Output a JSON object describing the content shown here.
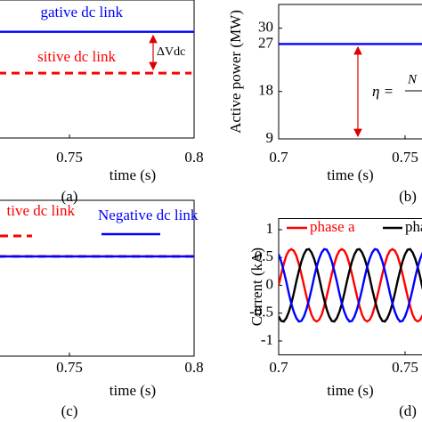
{
  "chart_data": [
    {
      "type": "line",
      "xlabel": "time (s)",
      "caption": "(a)",
      "xlim": [
        0.7,
        0.8
      ],
      "ylim": [
        0,
        1
      ],
      "xticks": [
        0.75,
        0.8
      ],
      "annotations": [
        "ΔVdc"
      ],
      "series": [
        {
          "name": "gative dc link",
          "color": "#0000ff",
          "x": [
            0.7,
            0.8
          ],
          "values": [
            0.77,
            0.77
          ]
        },
        {
          "name": "sitive dc link",
          "color": "#ff0000",
          "dashed": true,
          "x": [
            0.7,
            0.799
          ],
          "values": [
            0.47,
            0.47
          ]
        }
      ]
    },
    {
      "type": "line",
      "ylabel": "Active power (MW)",
      "xlabel": "time (s)",
      "caption": "(b)",
      "xlim": [
        0.7,
        0.8
      ],
      "ylim": [
        9,
        34.5
      ],
      "xticks": [
        0.7,
        0.75
      ],
      "yticks": [
        9,
        18,
        27,
        30
      ],
      "annotations": [
        "η =",
        "N"
      ],
      "series": [
        {
          "color": "#0000ff",
          "x": [
            0.7,
            0.8
          ],
          "values": [
            27,
            27
          ]
        }
      ]
    },
    {
      "type": "line",
      "xlabel": "time (s)",
      "caption": "(c)",
      "xlim": [
        0.7,
        0.8
      ],
      "ylim": [
        0,
        1
      ],
      "xticks": [
        0.75,
        0.8
      ],
      "series": [
        {
          "name": "tive dc link",
          "color": "#ff0000",
          "dashed": true,
          "x": [
            0.7,
            0.8
          ],
          "values": [
            0.64,
            0.64
          ]
        },
        {
          "name": "Negative dc link",
          "color": "#0000ff",
          "x": [
            0.7,
            0.8
          ],
          "values": [
            0.64,
            0.64
          ]
        }
      ]
    },
    {
      "type": "line",
      "ylabel": "Current (kA)",
      "xlabel": "time (s)",
      "caption": "(d)",
      "xlim": [
        0.7,
        0.8
      ],
      "ylim": [
        -1.25,
        1.2
      ],
      "xticks": [
        0.7,
        0.75
      ],
      "yticks": [
        -1,
        -0.5,
        0,
        0.5,
        1
      ],
      "x": [
        0.7,
        0.701,
        0.702,
        0.703,
        0.704,
        0.705,
        0.706,
        0.707,
        0.708,
        0.709,
        0.71,
        0.711,
        0.712,
        0.713,
        0.714,
        0.715,
        0.716,
        0.717,
        0.718,
        0.719,
        0.72,
        0.721,
        0.722,
        0.723,
        0.724,
        0.725,
        0.726,
        0.727,
        0.728,
        0.729,
        0.73,
        0.731,
        0.732,
        0.733,
        0.734,
        0.735,
        0.736,
        0.737,
        0.738,
        0.739,
        0.74,
        0.741,
        0.742,
        0.743,
        0.744,
        0.745,
        0.746,
        0.747,
        0.748,
        0.749,
        0.75,
        0.751,
        0.752,
        0.753,
        0.754,
        0.755,
        0.756,
        0.757
      ],
      "series": [
        {
          "name": "phase a",
          "color": "#ff0000",
          "values": [
            0,
            0.2,
            0.38,
            0.53,
            0.62,
            0.65,
            0.62,
            0.53,
            0.38,
            0.2,
            0,
            -0.2,
            -0.38,
            -0.53,
            -0.62,
            -0.65,
            -0.62,
            -0.53,
            -0.38,
            -0.2,
            0,
            0.2,
            0.38,
            0.53,
            0.62,
            0.65,
            0.62,
            0.53,
            0.38,
            0.2,
            0,
            -0.2,
            -0.38,
            -0.53,
            -0.62,
            -0.65,
            -0.62,
            -0.53,
            -0.38,
            -0.2,
            0,
            0.2,
            0.38,
            0.53,
            0.62,
            0.65,
            0.62,
            0.53,
            0.38,
            0.2,
            0,
            -0.2,
            -0.38,
            -0.53,
            -0.62,
            -0.65,
            -0.62,
            -0.53
          ]
        },
        {
          "name": "pha",
          "color": "#000000",
          "values": [
            -0.56,
            -0.64,
            -0.65,
            -0.59,
            -0.48,
            -0.33,
            -0.14,
            0.07,
            0.26,
            0.43,
            0.56,
            0.64,
            0.65,
            0.59,
            0.48,
            0.33,
            0.14,
            -0.07,
            -0.26,
            -0.43,
            -0.56,
            -0.64,
            -0.65,
            -0.59,
            -0.48,
            -0.33,
            -0.14,
            0.07,
            0.26,
            0.43,
            0.56,
            0.64,
            0.65,
            0.59,
            0.48,
            0.33,
            0.14,
            -0.07,
            -0.26,
            -0.43,
            -0.56,
            -0.64,
            -0.65,
            -0.59,
            -0.48,
            -0.33,
            -0.14,
            0.07,
            0.26,
            0.43,
            0.56,
            0.64,
            0.65,
            0.59,
            0.48,
            0.33,
            0.14,
            -0.07
          ]
        },
        {
          "color": "#0000ff",
          "values": [
            0.56,
            0.43,
            0.26,
            0.07,
            -0.14,
            -0.33,
            -0.48,
            -0.59,
            -0.65,
            -0.64,
            -0.56,
            -0.43,
            -0.26,
            -0.07,
            0.14,
            0.33,
            0.48,
            0.59,
            0.65,
            0.64,
            0.56,
            0.43,
            0.26,
            0.07,
            -0.14,
            -0.33,
            -0.48,
            -0.59,
            -0.65,
            -0.64,
            -0.56,
            -0.43,
            -0.26,
            -0.07,
            0.14,
            0.33,
            0.48,
            0.59,
            0.65,
            0.64,
            0.56,
            0.43,
            0.26,
            0.07,
            -0.14,
            -0.33,
            -0.48,
            -0.59,
            -0.65,
            -0.64,
            -0.56,
            -0.43,
            -0.26,
            -0.07,
            0.14,
            0.33,
            0.48,
            0.59
          ]
        }
      ]
    }
  ]
}
